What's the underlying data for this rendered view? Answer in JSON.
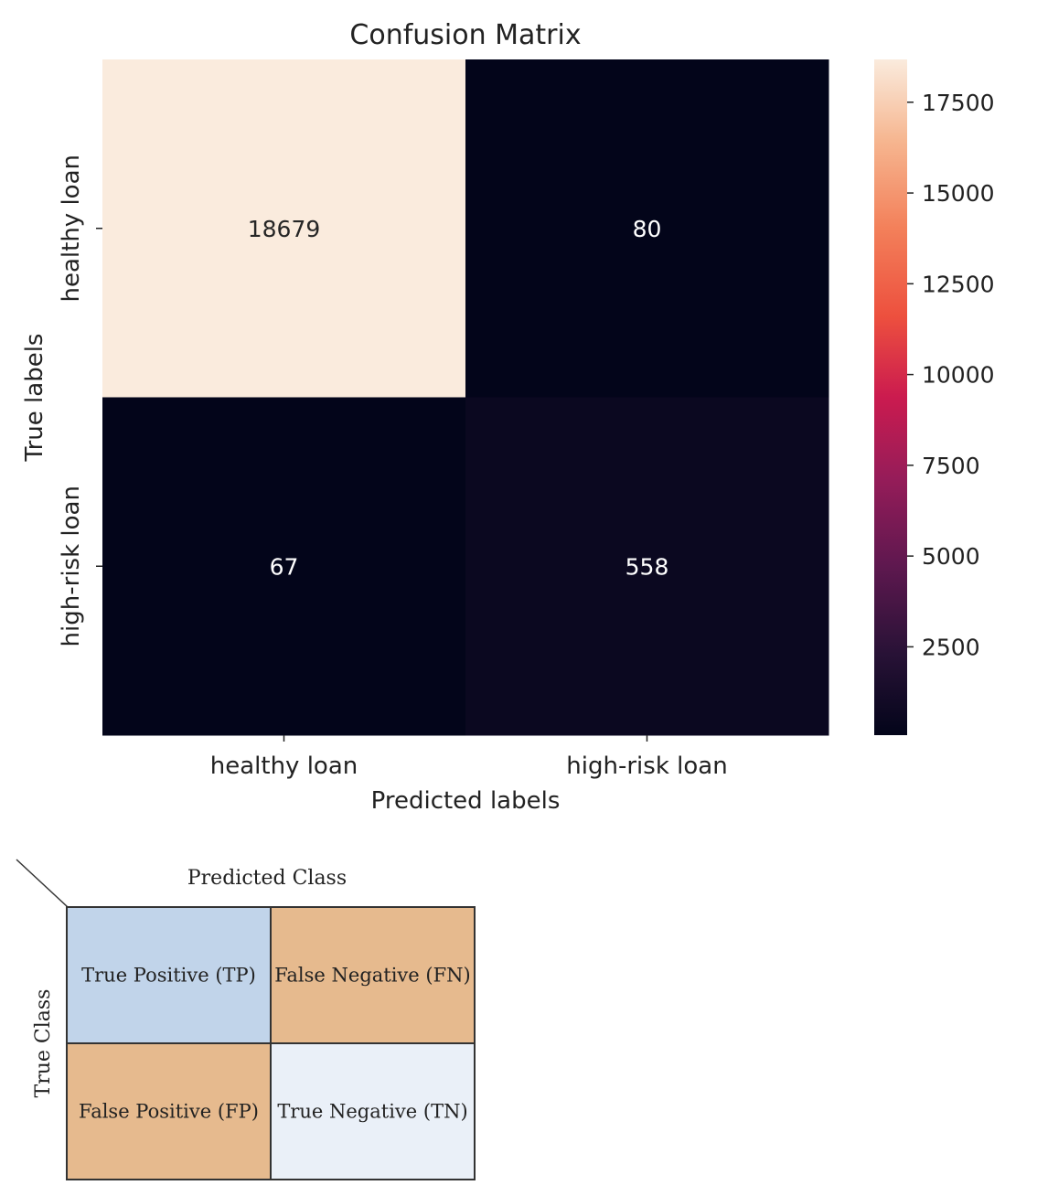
{
  "chart_data": {
    "type": "heatmap",
    "title": "Confusion Matrix",
    "xlabel": "Predicted labels",
    "ylabel": "True labels",
    "x_categories": [
      "healthy loan",
      "high-risk loan"
    ],
    "y_categories": [
      "healthy loan",
      "high-risk loan"
    ],
    "values": [
      [
        18679,
        80
      ],
      [
        67,
        558
      ]
    ],
    "colorbar": {
      "min": 67,
      "max": 18679,
      "ticks": [
        2500,
        5000,
        7500,
        10000,
        12500,
        15000,
        17500
      ],
      "colormap": "rocket"
    }
  },
  "reference_matrix": {
    "title": "Predicted Class",
    "ylabel": "True Class",
    "cells": [
      [
        "True Positive (TP)",
        "False Negative (FN)"
      ],
      [
        "False Positive (FP)",
        "True Negative (TN)"
      ]
    ],
    "colors": [
      [
        "#c1d4ea",
        "#e6ba8e"
      ],
      [
        "#e6ba8e",
        "#eaf0f8"
      ]
    ]
  }
}
